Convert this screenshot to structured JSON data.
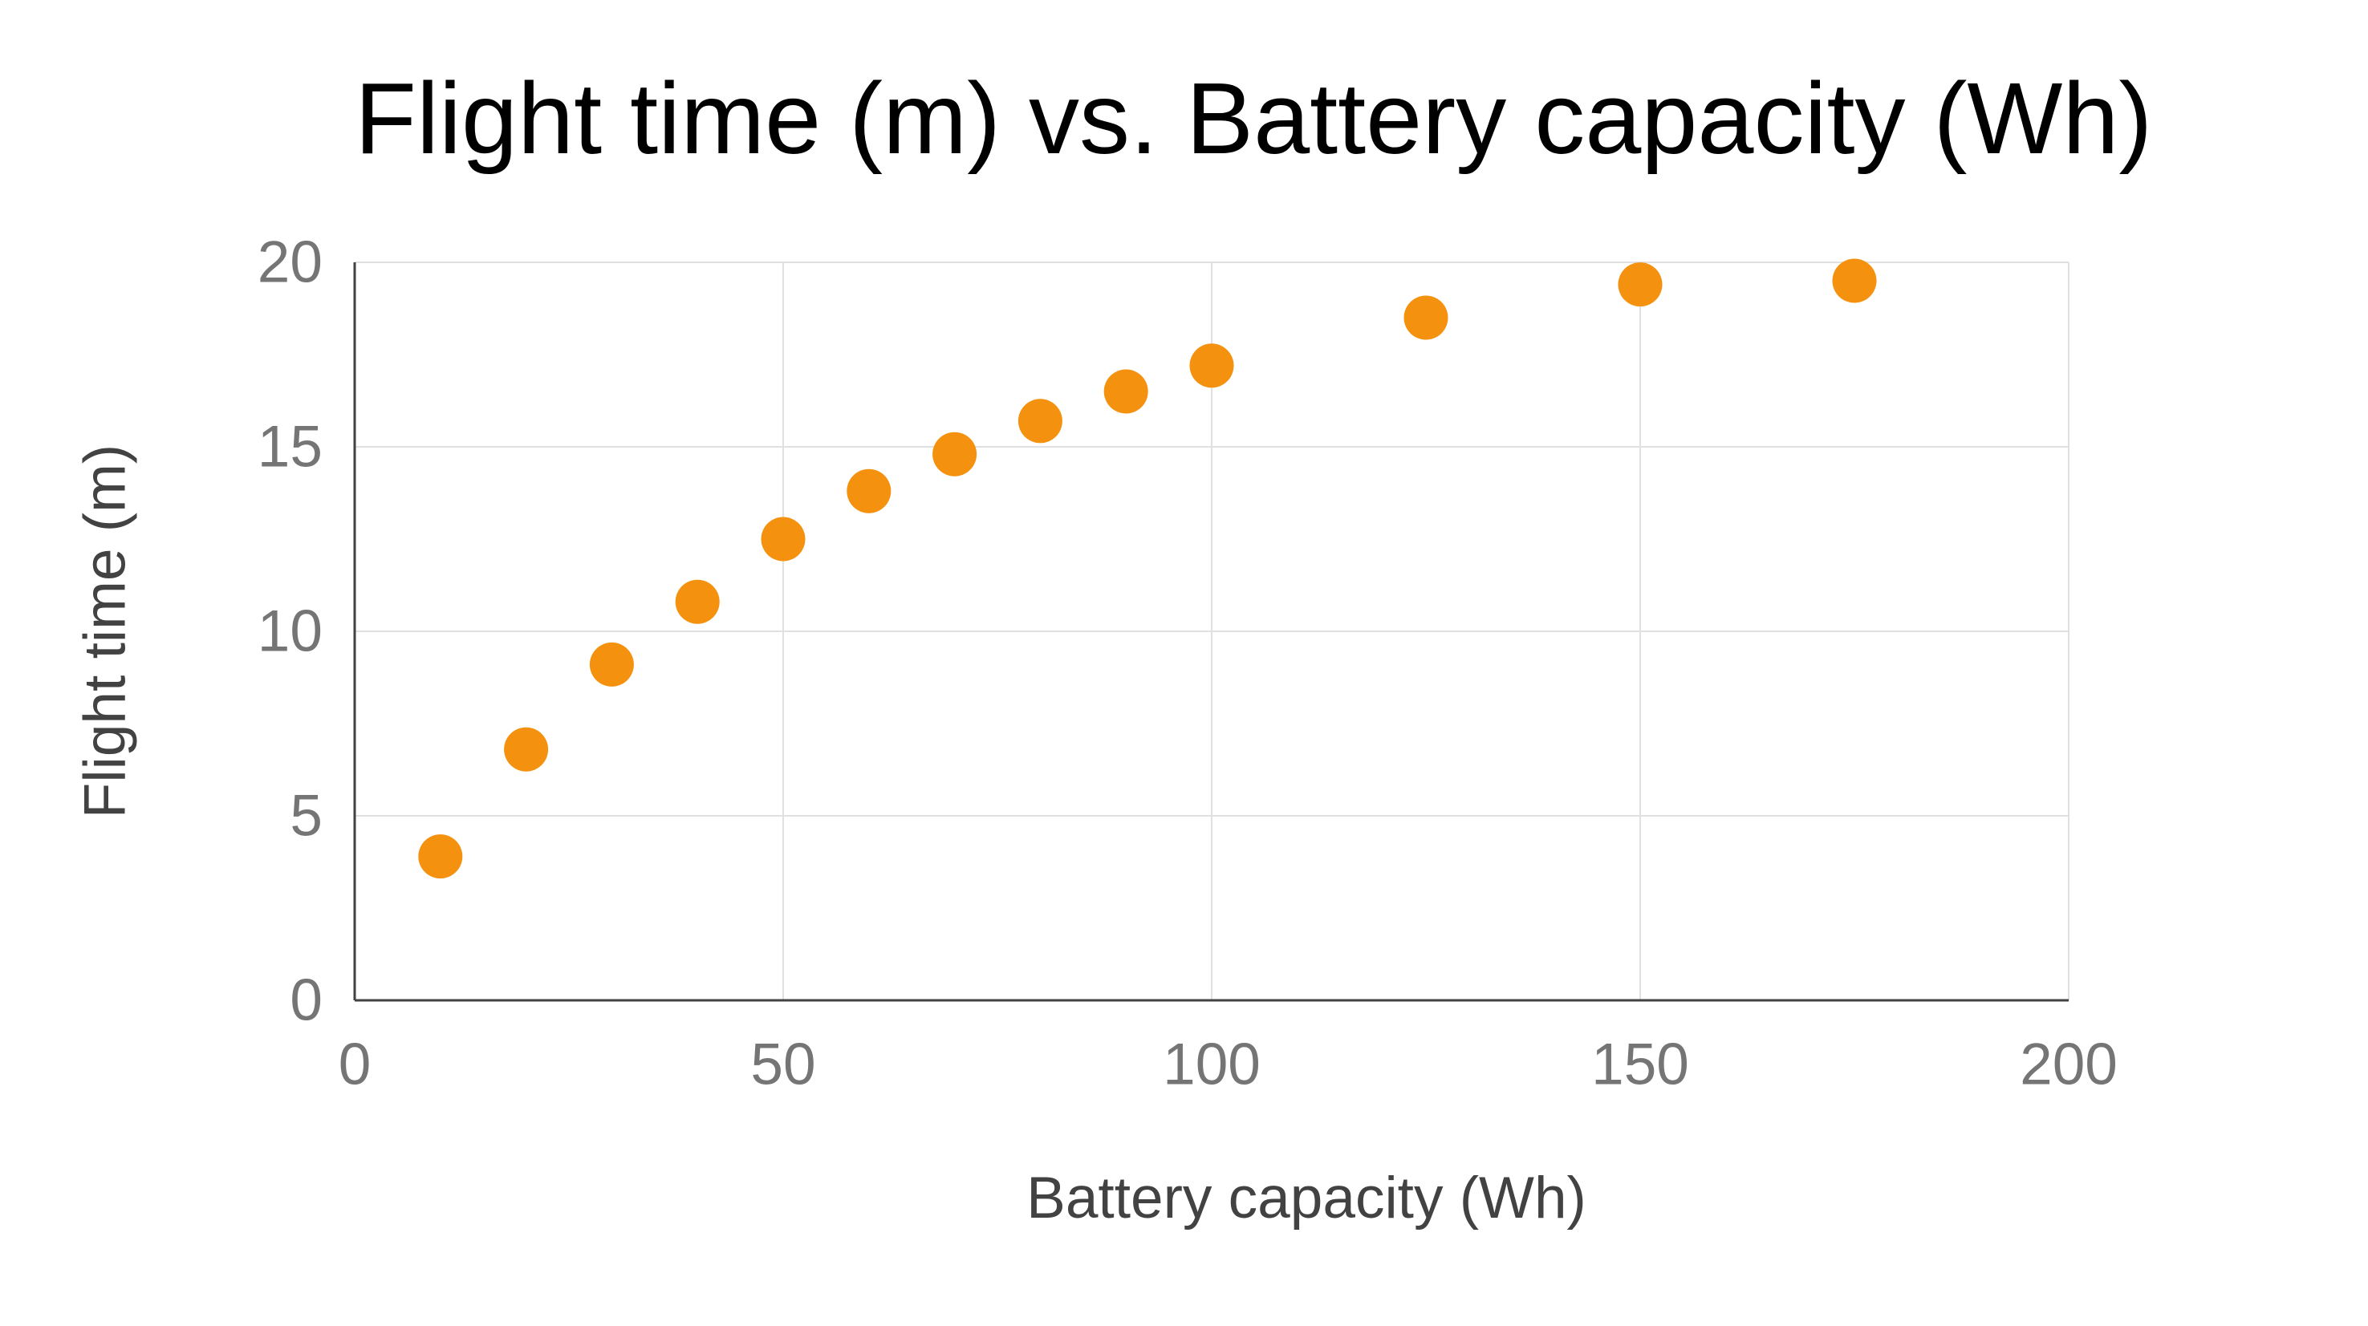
{
  "page": {
    "background": "#ffffff"
  },
  "chart_data": {
    "type": "scatter",
    "title": "Flight time (m) vs. Battery capacity (Wh)",
    "xlabel": "Battery capacity (Wh)",
    "ylabel": "Flight time (m)",
    "xlim": [
      0,
      200
    ],
    "ylim": [
      0,
      20
    ],
    "xticks": [
      0,
      50,
      100,
      150,
      200
    ],
    "yticks": [
      0,
      5,
      10,
      15,
      20
    ],
    "grid": true,
    "legend": "none",
    "series": [
      {
        "points": [
          {
            "x": 10,
            "y": 3.9
          },
          {
            "x": 20,
            "y": 6.8
          },
          {
            "x": 30,
            "y": 9.1
          },
          {
            "x": 40,
            "y": 10.8
          },
          {
            "x": 50,
            "y": 12.5
          },
          {
            "x": 60,
            "y": 13.8
          },
          {
            "x": 70,
            "y": 14.8
          },
          {
            "x": 80,
            "y": 15.7
          },
          {
            "x": 90,
            "y": 16.5
          },
          {
            "x": 100,
            "y": 17.2
          },
          {
            "x": 125,
            "y": 18.5
          },
          {
            "x": 150,
            "y": 19.4
          },
          {
            "x": 175,
            "y": 19.5
          }
        ]
      }
    ],
    "colors": {
      "point": "#F4920F",
      "grid": "#E0E0E0",
      "axis": "#424242",
      "tick_label": "#757575",
      "axis_title": "#424242",
      "title": "#000000"
    }
  }
}
